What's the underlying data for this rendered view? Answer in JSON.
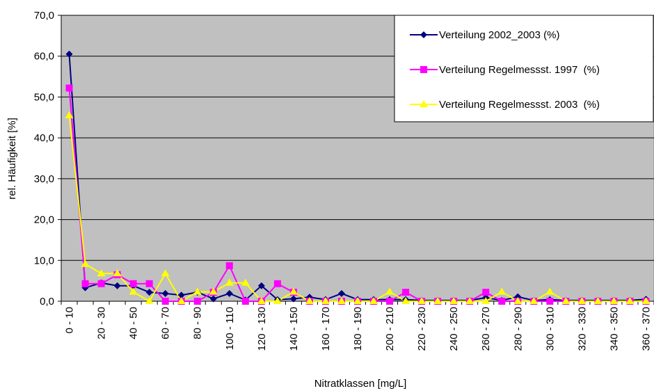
{
  "chart_data": {
    "type": "line",
    "x_label": "Nitratklassen [mg/L]",
    "y_label": "rel. Häufigkeit [%]",
    "categories": [
      "0 - 10",
      null,
      "20 - 30",
      null,
      "40 - 50",
      null,
      "60 - 70",
      null,
      "80 - 90",
      null,
      "100 - 110",
      null,
      "120 - 130",
      null,
      "140 - 150",
      null,
      "160 - 170",
      null,
      "180 - 190",
      null,
      "200 - 210",
      null,
      "220 - 230",
      null,
      "240 - 250",
      null,
      "260 - 270",
      null,
      "280 - 290",
      null,
      "300 - 310",
      null,
      "320 - 330",
      null,
      "340 - 350",
      null,
      "360 - 370"
    ],
    "ylim": [
      0,
      70
    ],
    "yticks": [
      {
        "value": 0,
        "label": "0,0"
      },
      {
        "value": 10,
        "label": "10,0"
      },
      {
        "value": 20,
        "label": "20,0"
      },
      {
        "value": 30,
        "label": "30,0"
      },
      {
        "value": 40,
        "label": "40,0"
      },
      {
        "value": 50,
        "label": "50,0"
      },
      {
        "value": 60,
        "label": "60,0"
      },
      {
        "value": 70,
        "label": "70,0"
      }
    ],
    "grid": true,
    "legend": "top-right",
    "plot_background": "#c0c0c0",
    "series": [
      {
        "name": "Verteilung 2002_2003 (%)",
        "color": "#000080",
        "marker": "diamond",
        "values": [
          60.5,
          3.3,
          4.5,
          3.8,
          3.8,
          2.2,
          1.9,
          1.5,
          2.2,
          0.6,
          1.9,
          0.3,
          3.8,
          0.4,
          0.6,
          1.0,
          0.4,
          1.9,
          0.4,
          0.4,
          0.4,
          0.4,
          0.2,
          0.2,
          0.2,
          0.2,
          0.9,
          0.2,
          1.1,
          0.2,
          0.4,
          0.2,
          0.2,
          0.2,
          0.2,
          0.2,
          0.5
        ]
      },
      {
        "name": "Verteilung Regelmessst. 1997  (%)",
        "color": "#ff00ff",
        "marker": "square",
        "values": [
          52.2,
          4.3,
          4.3,
          6.5,
          4.3,
          4.3,
          0,
          0,
          0,
          2.2,
          8.7,
          0,
          0,
          4.3,
          2.2,
          0,
          0,
          0,
          0,
          0,
          0,
          2.2,
          0,
          0,
          0,
          0,
          2.2,
          0,
          0,
          0,
          0,
          0,
          0,
          0,
          0,
          0,
          0
        ]
      },
      {
        "name": "Verteilung Regelmessst. 2003  (%)",
        "color": "#ffff00",
        "marker": "triangle",
        "values": [
          45.5,
          9.1,
          6.8,
          6.8,
          2.3,
          0,
          6.8,
          0,
          2.3,
          2.3,
          4.5,
          4.5,
          0,
          0,
          2.3,
          0,
          0,
          0,
          0,
          0,
          2.3,
          0,
          0,
          0,
          0,
          0,
          0,
          2.3,
          0,
          0,
          2.3,
          0,
          0,
          0,
          0,
          0,
          0
        ]
      }
    ]
  }
}
